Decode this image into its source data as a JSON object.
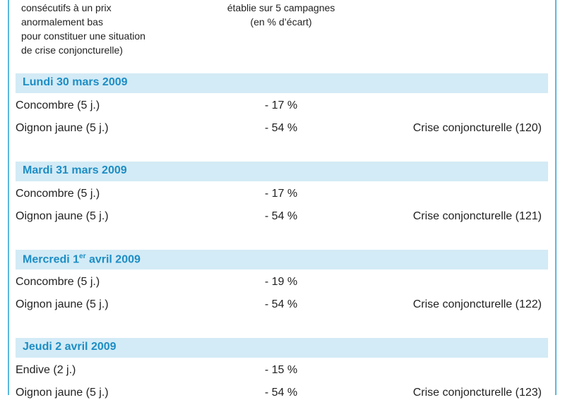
{
  "header": {
    "left": [
      "consécutifs à un prix",
      "anormalement bas",
      "pour constituer une situation",
      "de crise conjoncturelle)"
    ],
    "middle": [
      "établie sur 5 campagnes",
      "(en % d’écart)"
    ]
  },
  "sections": [
    {
      "title": {
        "main": "Lundi 30 mars 2009"
      },
      "rows": [
        [
          "Concombre (5 j.)",
          "- 17 %"
        ],
        [
          "Oignon jaune (5 j.)",
          "- 54 %",
          "Crise conjoncturelle (120)"
        ]
      ]
    },
    {
      "title": {
        "main": "Mardi 31 mars 2009"
      },
      "rows": [
        [
          "Concombre (5 j.)",
          "- 17 %"
        ],
        [
          "Oignon jaune (5 j.)",
          "- 54 %",
          "Crise conjoncturelle (121)"
        ]
      ]
    },
    {
      "title": {
        "main": "Mercredi 1",
        "sup": "er",
        "rest": " avril 2009"
      },
      "rows": [
        [
          "Concombre (5 j.)",
          "- 19 %"
        ],
        [
          "Oignon jaune (5 j.)",
          "- 54 %",
          "Crise conjoncturelle (122)"
        ]
      ]
    },
    {
      "title": {
        "main": "Jeudi 2 avril 2009"
      },
      "rows": [
        [
          "Endive (2 j.)",
          "- 15 %"
        ],
        [
          "Oignon jaune (5 j.)",
          "- 54 %",
          "Crise conjoncturelle (123)"
        ]
      ]
    }
  ]
}
